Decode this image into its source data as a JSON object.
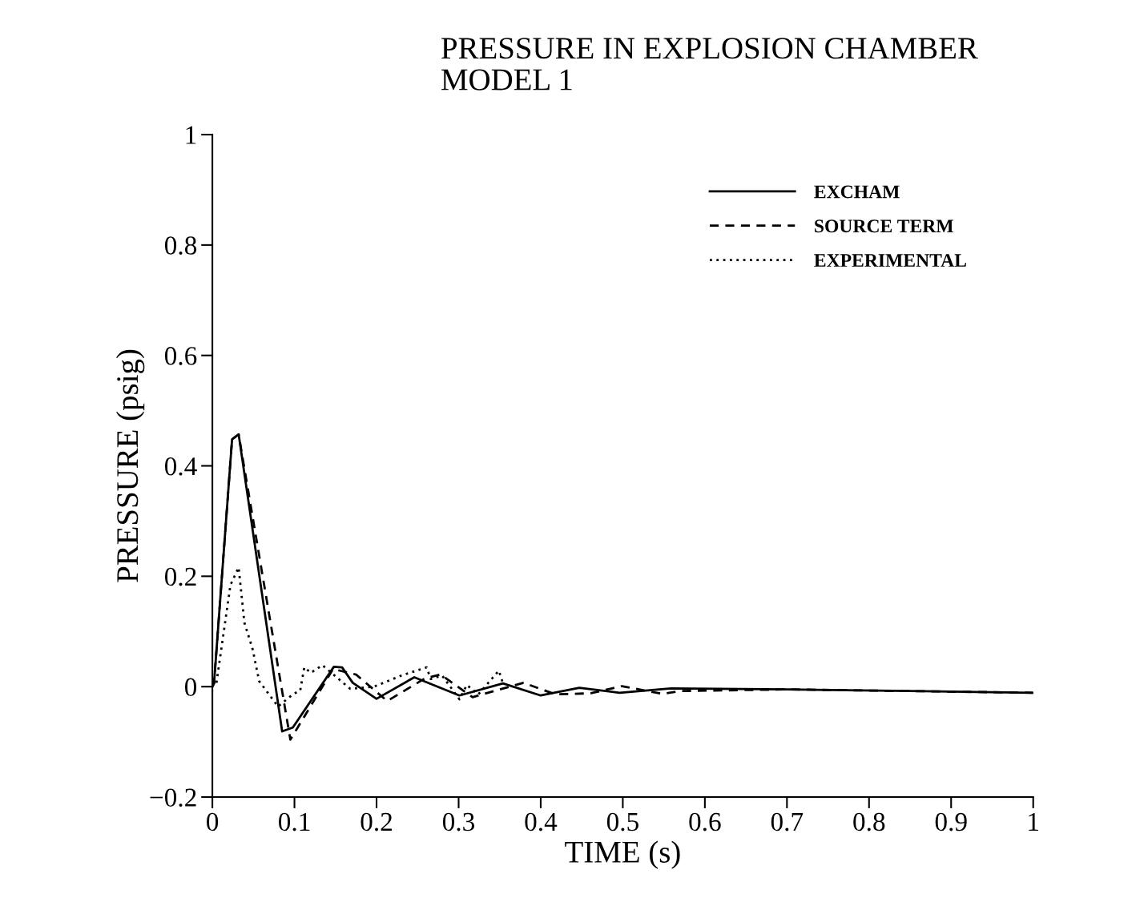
{
  "chart_data": {
    "type": "line",
    "title": "PRESSURE IN EXPLOSION CHAMBER",
    "subtitle": "MODEL 1",
    "xlabel": "TIME (s)",
    "ylabel": "PRESSURE (psig)",
    "xlim": [
      0,
      1
    ],
    "ylim": [
      -0.2,
      1
    ],
    "xticks": [
      0,
      0.1,
      0.2,
      0.3,
      0.4,
      0.5,
      0.6,
      0.7,
      0.8,
      0.9,
      1
    ],
    "yticks": [
      {
        "value": -0.2,
        "label": "−0.2"
      },
      0,
      0.2,
      0.4,
      0.6,
      0.8,
      1
    ],
    "grid": false,
    "legend": "top right",
    "marker": "none",
    "series": [
      {
        "name": "EXCHAM",
        "color": "#000000",
        "line_style": "solid",
        "x": [
          0,
          0.002,
          0.024,
          0.032,
          0.085,
          0.098,
          0.148,
          0.158,
          0.171,
          0.2,
          0.246,
          0.301,
          0.354,
          0.4,
          0.447,
          0.496,
          0.559,
          0.7,
          0.85,
          1.0
        ],
        "values": [
          0,
          0.006,
          0.448,
          0.457,
          -0.081,
          -0.074,
          0.036,
          0.035,
          0.007,
          -0.022,
          0.017,
          -0.016,
          0.006,
          -0.016,
          -0.002,
          -0.011,
          -0.003,
          -0.005,
          -0.008,
          -0.011
        ]
      },
      {
        "name": "SOURCE TERM",
        "color": "#000000",
        "line_style": "dashed",
        "x": [
          0,
          0.002,
          0.024,
          0.032,
          0.095,
          0.147,
          0.175,
          0.213,
          0.259,
          0.278,
          0.317,
          0.379,
          0.418,
          0.461,
          0.499,
          0.548,
          0.57,
          0.7,
          0.85,
          1.0
        ],
        "values": [
          0,
          0.006,
          0.448,
          0.457,
          -0.096,
          0.032,
          0.022,
          -0.026,
          0.015,
          0.022,
          -0.019,
          0.007,
          -0.014,
          -0.012,
          0.001,
          -0.013,
          -0.008,
          -0.005,
          -0.008,
          -0.011
        ]
      },
      {
        "name": "EXPERIMENTAL",
        "color": "#000000",
        "line_style": "dotted",
        "x": [
          0.005,
          0.022,
          0.032,
          0.039,
          0.049,
          0.057,
          0.08,
          0.098,
          0.107,
          0.112,
          0.12,
          0.134,
          0.168,
          0.197,
          0.23,
          0.261,
          0.266,
          0.28,
          0.301,
          0.31,
          0.324,
          0.349,
          0.354
        ],
        "values": [
          0.007,
          0.184,
          0.216,
          0.116,
          0.068,
          0.01,
          -0.036,
          -0.014,
          -0.007,
          0.035,
          0.025,
          0.039,
          -0.004,
          0,
          0.02,
          0.035,
          0.014,
          0.02,
          -0.023,
          0.003,
          -0.014,
          0.029,
          0.006
        ]
      }
    ]
  }
}
